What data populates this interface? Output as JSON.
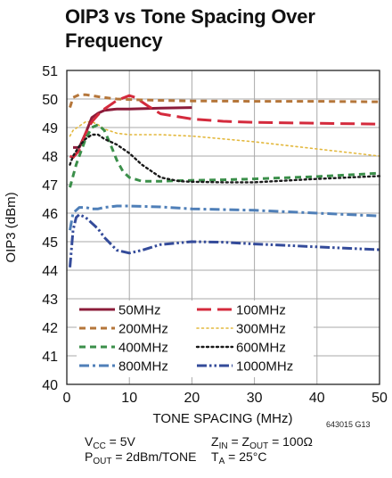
{
  "chart_data": {
    "type": "line",
    "title": "OIP3 vs Tone Spacing Over Frequency",
    "xlabel": "TONE SPACING (MHz)",
    "ylabel": "OIP3 (dBm)",
    "xlim": [
      0,
      50
    ],
    "ylim": [
      40,
      51
    ],
    "xticks": [
      0,
      10,
      20,
      30,
      40,
      50
    ],
    "yticks": [
      40,
      41,
      42,
      43,
      44,
      45,
      46,
      47,
      48,
      49,
      50,
      51
    ],
    "grid": true,
    "legend_position": "lower-left",
    "series": [
      {
        "name": "50MHz",
        "color": "#8c1c3a",
        "style": "solid",
        "x": [
          1,
          2,
          3,
          4,
          5,
          6,
          8,
          10,
          15,
          20
        ],
        "y": [
          48.3,
          48.3,
          48.8,
          49.35,
          49.5,
          49.6,
          49.65,
          49.65,
          49.68,
          49.7
        ]
      },
      {
        "name": "100MHz",
        "color": "#d42a3c",
        "style": "longdash",
        "x": [
          0.5,
          1,
          2,
          3,
          4,
          5,
          6,
          8,
          10,
          11,
          13,
          15,
          20,
          25,
          30,
          40,
          50
        ],
        "y": [
          48.0,
          47.95,
          48.2,
          48.8,
          49.2,
          49.45,
          49.65,
          49.95,
          50.12,
          50.05,
          49.75,
          49.48,
          49.3,
          49.22,
          49.18,
          49.15,
          49.12
        ]
      },
      {
        "name": "200MHz",
        "color": "#b5763a",
        "style": "dash",
        "x": [
          0.5,
          1,
          2,
          3,
          4,
          5,
          6,
          8,
          10,
          15,
          20,
          30,
          40,
          50
        ],
        "y": [
          49.7,
          50.05,
          50.15,
          50.15,
          50.12,
          50.08,
          50.05,
          50.0,
          49.98,
          49.95,
          49.93,
          49.92,
          49.92,
          49.9
        ]
      },
      {
        "name": "300MHz",
        "color": "#e3b83d",
        "style": "dotted",
        "x": [
          0.5,
          1,
          2,
          3,
          4,
          5,
          6,
          8,
          10,
          15,
          20,
          30,
          40,
          50
        ],
        "y": [
          48.7,
          48.9,
          49.05,
          49.2,
          49.2,
          49.1,
          48.95,
          48.8,
          48.75,
          48.75,
          48.7,
          48.5,
          48.25,
          48.0
        ]
      },
      {
        "name": "400MHz",
        "color": "#3b8f4a",
        "style": "dash",
        "x": [
          0.5,
          1,
          1.5,
          2,
          3,
          4,
          5,
          6,
          7,
          8,
          9,
          10,
          12,
          15,
          20,
          25,
          30,
          40,
          50
        ],
        "y": [
          46.9,
          47.3,
          47.7,
          48.0,
          48.6,
          49.0,
          49.1,
          48.9,
          48.4,
          47.85,
          47.45,
          47.25,
          47.12,
          47.12,
          47.15,
          47.17,
          47.2,
          47.28,
          47.4
        ]
      },
      {
        "name": "600MHz",
        "color": "#1a1a1a",
        "style": "dotted",
        "x": [
          0.5,
          1,
          2,
          3,
          4,
          5,
          6,
          8,
          10,
          12,
          15,
          18,
          20,
          25,
          30,
          40,
          50
        ],
        "y": [
          47.7,
          48.0,
          48.35,
          48.6,
          48.75,
          48.75,
          48.6,
          48.4,
          48.1,
          47.7,
          47.25,
          47.12,
          47.1,
          47.08,
          47.08,
          47.2,
          47.3
        ]
      },
      {
        "name": "800MHz",
        "color": "#4f7fb8",
        "style": "dashdot",
        "x": [
          0.5,
          1,
          2,
          3,
          4,
          5,
          6,
          8,
          10,
          15,
          20,
          30,
          40,
          50
        ],
        "y": [
          45.4,
          46.0,
          46.2,
          46.2,
          46.15,
          46.15,
          46.2,
          46.25,
          46.25,
          46.22,
          46.15,
          46.1,
          46.0,
          45.9
        ]
      },
      {
        "name": "1000MHz",
        "color": "#344b9a",
        "style": "dashdotdot",
        "x": [
          0.5,
          1,
          1.5,
          2,
          3,
          4,
          5,
          6,
          8,
          10,
          12,
          15,
          20,
          25,
          30,
          40,
          50
        ],
        "y": [
          44.1,
          45.4,
          45.85,
          45.95,
          45.85,
          45.65,
          45.45,
          45.15,
          44.7,
          44.6,
          44.7,
          44.9,
          45.0,
          44.98,
          44.92,
          44.82,
          44.72
        ]
      }
    ]
  },
  "figure_id": "643015 G13",
  "conditions": {
    "vcc_label": "V",
    "vcc_sub": "CC",
    "vcc_value": " = 5V",
    "pout_label": "P",
    "pout_sub": "OUT",
    "pout_value": " = 2dBm/TONE",
    "zin_label": "Z",
    "zin_sub": "IN",
    "zin_mid": " = Z",
    "zout_sub": "OUT",
    "zout_value": " = 100Ω",
    "ta_label": "T",
    "ta_sub": "A",
    "ta_value": " = 25°C"
  }
}
